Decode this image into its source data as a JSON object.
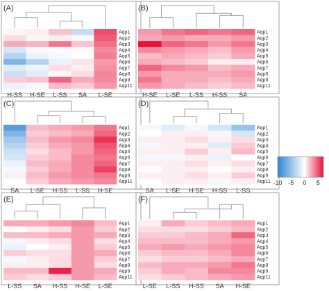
{
  "colors": {
    "negative": "#2f84d6",
    "neutral": "#ffffff",
    "positive": "#e8113a",
    "dendrogram": "#a0a0a0",
    "frame": "#888888"
  },
  "chart_data": {
    "type": "heatmap",
    "rows": [
      "Aqp1",
      "Aqp2",
      "Aqp3",
      "Aqp4",
      "Aqp5",
      "Aqp6",
      "Aqp7",
      "Aqp8",
      "Aqp9",
      "Aqp11"
    ],
    "legend": {
      "range": [
        -10,
        7
      ],
      "ticks": [
        "-10",
        "-5",
        "0",
        "5"
      ],
      "tick_values": [
        -10,
        -5,
        0,
        5
      ],
      "position": "right"
    },
    "panels": [
      {
        "label": "(A)",
        "columns": [
          "H-SS",
          "H-SE",
          "L-SS",
          "SA",
          "L-SE"
        ],
        "values": [
          [
            0.3,
            0.5,
            1.8,
            -2.8,
            5.2
          ],
          [
            1.0,
            0.3,
            0.5,
            0.3,
            4.8
          ],
          [
            2.5,
            2.2,
            4.0,
            1.8,
            4.2
          ],
          [
            -2.0,
            -0.5,
            -0.3,
            0.2,
            3.5
          ],
          [
            -3.5,
            -1.0,
            -0.5,
            0.0,
            3.8
          ],
          [
            -6.0,
            -3.5,
            -1.0,
            0.8,
            3.0
          ],
          [
            -1.5,
            -0.8,
            1.0,
            0.5,
            3.2
          ],
          [
            -2.5,
            -1.5,
            0.3,
            1.0,
            3.6
          ],
          [
            1.5,
            1.8,
            4.5,
            2.5,
            3.5
          ],
          [
            -1.0,
            -0.5,
            2.0,
            1.5,
            3.0
          ]
        ]
      },
      {
        "label": "(B)",
        "columns": [
          "H-SE",
          "L-SE",
          "L-SS",
          "H-SS",
          "SA"
        ],
        "values": [
          [
            3.0,
            4.0,
            4.5,
            4.0,
            4.5
          ],
          [
            2.5,
            3.0,
            2.5,
            2.5,
            3.0
          ],
          [
            7.0,
            4.5,
            4.0,
            3.0,
            4.0
          ],
          [
            3.5,
            3.0,
            2.5,
            2.0,
            3.0
          ],
          [
            2.0,
            2.5,
            2.0,
            1.5,
            2.5
          ],
          [
            2.5,
            2.0,
            1.5,
            0.5,
            0.5
          ],
          [
            4.5,
            3.5,
            3.0,
            2.0,
            2.5
          ],
          [
            3.0,
            2.5,
            2.5,
            2.5,
            3.0
          ],
          [
            4.0,
            2.5,
            2.5,
            2.0,
            2.5
          ],
          [
            3.0,
            2.5,
            2.0,
            1.5,
            2.0
          ]
        ]
      },
      {
        "label": "(C)",
        "columns": [
          "SA",
          "L-SE",
          "H-SS",
          "L-SS",
          "H-SE"
        ],
        "values": [
          [
            -8.0,
            2.0,
            2.5,
            3.0,
            4.0
          ],
          [
            -6.0,
            1.5,
            2.0,
            2.5,
            4.5
          ],
          [
            -4.5,
            2.0,
            3.0,
            3.5,
            6.0
          ],
          [
            -3.5,
            1.5,
            2.5,
            3.0,
            5.0
          ],
          [
            -2.5,
            1.0,
            2.0,
            3.0,
            4.5
          ],
          [
            -2.0,
            1.5,
            2.0,
            3.5,
            4.0
          ],
          [
            -1.0,
            2.0,
            2.5,
            3.5,
            4.5
          ],
          [
            -0.5,
            1.5,
            2.5,
            3.5,
            5.5
          ],
          [
            0.5,
            2.0,
            3.0,
            3.5,
            4.0
          ],
          [
            0.0,
            1.5,
            2.5,
            3.0,
            3.5
          ]
        ]
      },
      {
        "label": "(D)",
        "columns": [
          "SA",
          "L-SE",
          "H-SE",
          "H-SS",
          "L-SS"
        ],
        "values": [
          [
            -0.5,
            -1.5,
            -0.5,
            -2.0,
            -5.0
          ],
          [
            0.0,
            0.5,
            0.5,
            -0.5,
            -2.0
          ],
          [
            0.5,
            0.5,
            1.0,
            0.5,
            1.0
          ],
          [
            -0.5,
            0.5,
            0.5,
            -1.5,
            1.5
          ],
          [
            0.5,
            0.5,
            1.5,
            0.5,
            2.0
          ],
          [
            -0.5,
            -0.5,
            0.5,
            -1.0,
            0.0
          ],
          [
            0.5,
            0.5,
            1.0,
            0.5,
            1.0
          ],
          [
            0.0,
            0.5,
            0.5,
            0.0,
            0.5
          ],
          [
            0.5,
            0.5,
            1.0,
            0.5,
            1.5
          ],
          [
            0.0,
            0.5,
            0.5,
            -0.5,
            0.5
          ]
        ]
      },
      {
        "label": "(E)",
        "columns": [
          "L-SS",
          "SA",
          "H-SS",
          "H-SE",
          "L-SE"
        ],
        "values": [
          [
            2.5,
            2.5,
            3.0,
            3.5,
            2.0
          ],
          [
            0.0,
            0.5,
            1.0,
            3.0,
            1.5
          ],
          [
            2.0,
            2.0,
            2.5,
            3.0,
            2.5
          ],
          [
            -0.5,
            0.5,
            1.0,
            3.0,
            1.0
          ],
          [
            -1.0,
            0.0,
            0.5,
            3.0,
            1.5
          ],
          [
            1.5,
            1.0,
            1.0,
            3.0,
            2.5
          ],
          [
            -0.5,
            0.5,
            1.0,
            3.0,
            1.5
          ],
          [
            0.5,
            0.5,
            1.0,
            3.0,
            1.0
          ],
          [
            2.0,
            2.0,
            6.5,
            3.0,
            2.5
          ],
          [
            1.5,
            1.0,
            1.5,
            3.0,
            2.0
          ]
        ]
      },
      {
        "label": "(F)",
        "columns": [
          "L-SE",
          "L-SS",
          "H-SS",
          "SA",
          "H-SE"
        ],
        "values": [
          [
            0.5,
            2.5,
            1.5,
            2.0,
            2.5
          ],
          [
            1.0,
            1.0,
            1.0,
            1.5,
            2.0
          ],
          [
            1.5,
            1.5,
            2.0,
            2.5,
            4.5
          ],
          [
            2.0,
            2.0,
            2.0,
            2.5,
            3.0
          ],
          [
            2.5,
            3.0,
            2.5,
            3.0,
            3.5
          ],
          [
            1.5,
            2.0,
            2.0,
            2.5,
            3.5
          ],
          [
            1.0,
            1.5,
            1.5,
            2.0,
            2.5
          ],
          [
            2.0,
            2.5,
            2.5,
            3.0,
            4.0
          ],
          [
            1.5,
            2.5,
            2.0,
            3.5,
            3.5
          ],
          [
            1.0,
            1.5,
            2.0,
            2.5,
            3.0
          ]
        ]
      }
    ]
  }
}
